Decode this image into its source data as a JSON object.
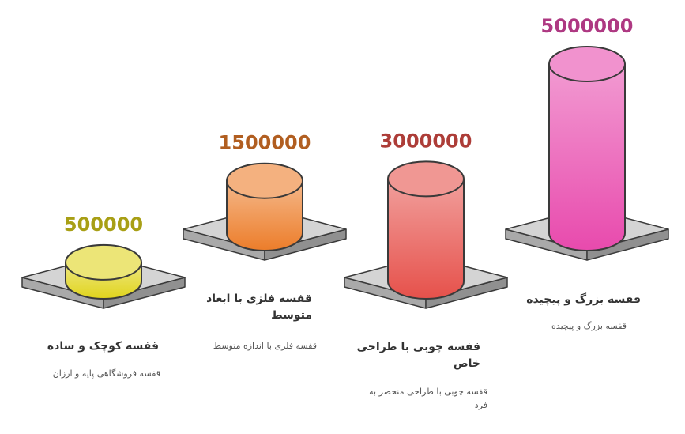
{
  "chart_data": {
    "type": "bar",
    "style": "3d-cylinders-on-platforms",
    "categories": [
      "قفسه کوچک و ساده",
      "قفسه فلزی با ابعاد متوسط",
      "قفسه چوبی با طراحی خاص",
      "قفسه بزرگ و پیچیده"
    ],
    "descriptions": [
      "قفسه فروشگاهی پایه و ارزان",
      "قفسه فلزی با اندازه متوسط",
      "قفسه چوبی با طراحی منحصر به فرد",
      "قفسه بزرگ و پیچیده"
    ],
    "values": [
      500000,
      1500000,
      3000000,
      5000000
    ],
    "value_labels": [
      "500000",
      "1500000",
      "3000000",
      "5000000"
    ],
    "colors": [
      "#e0d41c",
      "#ec7d2a",
      "#e6514b",
      "#e84aad"
    ],
    "title": "",
    "xlabel": "",
    "ylabel": ""
  }
}
